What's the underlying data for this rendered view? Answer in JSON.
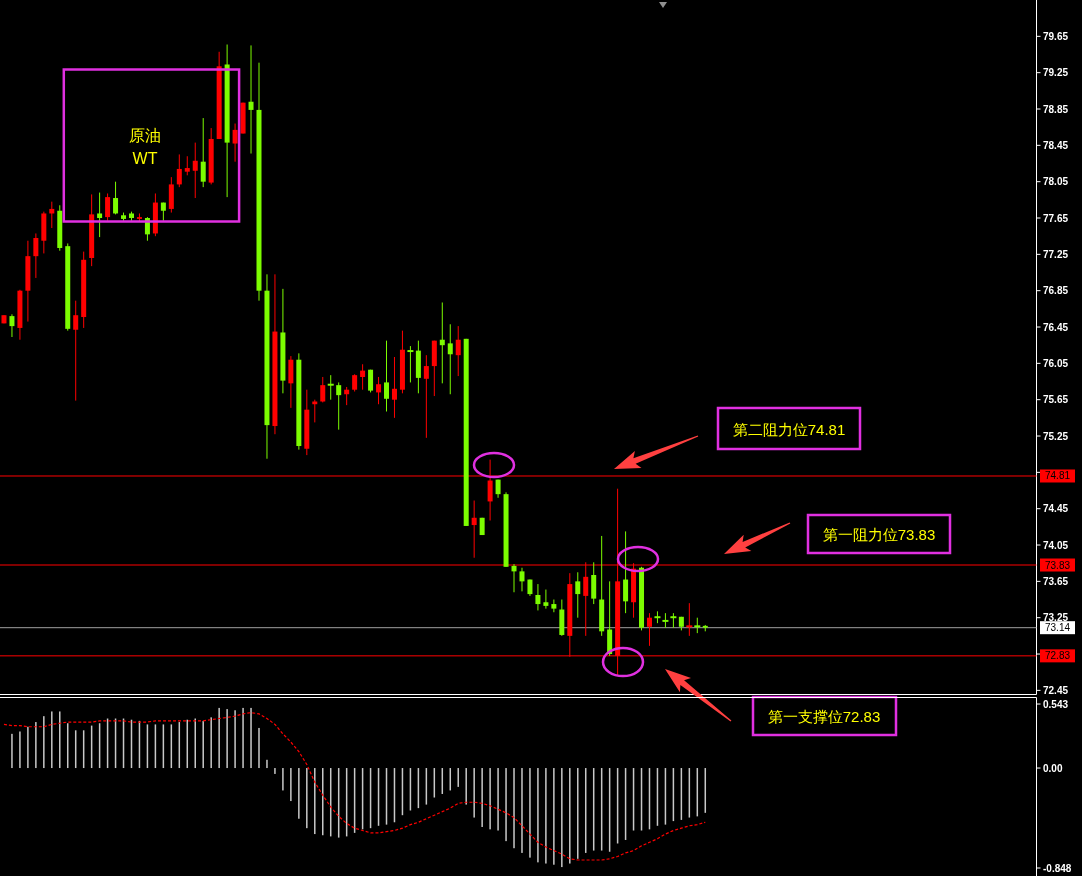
{
  "chart_data": [
    {
      "type": "candlestick",
      "categories": [
        null,
        null,
        null,
        null,
        null,
        null,
        null,
        null,
        null,
        null,
        null,
        null,
        null,
        null,
        null,
        null,
        null,
        null,
        null,
        null,
        null,
        null,
        null,
        null,
        null,
        null,
        null,
        null,
        null,
        null,
        null,
        null,
        null,
        null,
        null,
        null,
        null,
        null,
        null,
        null,
        null,
        null,
        null,
        null,
        null,
        null,
        null,
        null,
        null,
        null,
        null,
        null,
        null,
        null,
        null,
        null,
        null,
        null,
        null,
        null,
        null,
        null,
        null,
        null,
        null,
        null,
        null,
        null,
        null,
        null,
        null,
        null,
        null,
        null,
        null,
        null,
        null,
        null,
        null,
        null,
        null,
        null,
        null,
        null,
        null,
        null,
        null,
        null,
        null,
        null,
        null,
        null,
        null,
        null,
        null,
        null,
        null,
        null,
        null,
        null,
        null,
        null,
        null,
        null,
        null,
        null,
        null,
        null,
        null,
        null,
        null,
        null,
        null,
        null,
        null,
        null,
        null,
        null,
        null,
        null,
        null,
        null,
        null,
        null,
        null,
        null,
        null,
        null,
        null,
        null
      ],
      "ohlc": [
        [
          76.49,
          76.58,
          76.49,
          76.58
        ],
        [
          76.57,
          76.59,
          76.34,
          76.46
        ],
        [
          76.44,
          76.86,
          76.31,
          76.85
        ],
        [
          76.85,
          77.4,
          76.51,
          77.23
        ],
        [
          77.23,
          77.48,
          76.99,
          77.43
        ],
        [
          77.4,
          77.72,
          77.26,
          77.7
        ],
        [
          77.7,
          77.83,
          77.54,
          77.75
        ],
        [
          77.73,
          77.79,
          77.29,
          77.32
        ],
        [
          77.34,
          77.37,
          76.41,
          76.43
        ],
        [
          76.42,
          76.74,
          75.64,
          76.58
        ],
        [
          76.56,
          77.28,
          76.44,
          77.19
        ],
        [
          77.21,
          77.91,
          77.12,
          77.69
        ],
        [
          77.7,
          77.93,
          77.44,
          77.65
        ],
        [
          77.66,
          77.92,
          77.62,
          77.88
        ],
        [
          77.87,
          78.05,
          77.69,
          77.7
        ],
        [
          77.68,
          77.71,
          77.62,
          77.64
        ],
        [
          77.7,
          77.72,
          77.62,
          77.65
        ],
        [
          77.64,
          77.7,
          77.61,
          77.66
        ],
        [
          77.65,
          77.66,
          77.4,
          77.47
        ],
        [
          77.48,
          77.92,
          77.45,
          77.82
        ],
        [
          77.82,
          77.82,
          77.62,
          77.73
        ],
        [
          77.75,
          78.1,
          77.71,
          78.02
        ],
        [
          78.02,
          78.35,
          77.99,
          78.19
        ],
        [
          78.16,
          78.33,
          78.12,
          78.2
        ],
        [
          78.17,
          78.48,
          77.87,
          78.28
        ],
        [
          78.27,
          78.75,
          77.99,
          78.05
        ],
        [
          78.04,
          78.64,
          78.02,
          78.52
        ],
        [
          78.52,
          79.48,
          78.52,
          79.32
        ],
        [
          79.34,
          79.56,
          77.88,
          78.48
        ],
        [
          78.47,
          78.69,
          78.27,
          78.62
        ],
        [
          78.58,
          78.92,
          78.58,
          78.92
        ],
        [
          78.93,
          79.55,
          78.36,
          78.84
        ],
        [
          78.84,
          79.36,
          76.74,
          76.85
        ],
        [
          76.85,
          77.03,
          75.0,
          75.37
        ],
        [
          75.36,
          77.03,
          75.27,
          76.4
        ],
        [
          76.39,
          76.87,
          75.72,
          75.86
        ],
        [
          75.83,
          76.13,
          75.56,
          76.09
        ],
        [
          76.09,
          76.16,
          75.1,
          75.14
        ],
        [
          75.11,
          75.76,
          75.04,
          75.54
        ],
        [
          75.6,
          75.65,
          75.4,
          75.63
        ],
        [
          75.63,
          75.9,
          75.62,
          75.81
        ],
        [
          75.82,
          75.92,
          75.65,
          75.81
        ],
        [
          75.81,
          75.84,
          75.32,
          75.7
        ],
        [
          75.71,
          75.79,
          75.59,
          75.76
        ],
        [
          75.76,
          75.93,
          75.74,
          75.92
        ],
        [
          75.9,
          76.04,
          75.76,
          75.97
        ],
        [
          75.98,
          75.98,
          75.73,
          75.75
        ],
        [
          75.73,
          75.9,
          75.6,
          75.82
        ],
        [
          75.84,
          76.3,
          75.52,
          75.66
        ],
        [
          75.65,
          76.12,
          75.45,
          75.77
        ],
        [
          75.76,
          76.41,
          75.72,
          76.2
        ],
        [
          76.19,
          76.24,
          75.84,
          76.18
        ],
        [
          76.19,
          76.3,
          75.72,
          75.89
        ],
        [
          75.88,
          76.14,
          75.23,
          76.02
        ],
        [
          76.02,
          76.3,
          75.69,
          76.3
        ],
        [
          76.31,
          76.72,
          75.83,
          76.25
        ],
        [
          76.27,
          76.48,
          75.71,
          76.15
        ],
        [
          76.14,
          76.46,
          75.91,
          76.31
        ],
        [
          76.32,
          76.32,
          74.26,
          74.26
        ],
        [
          74.27,
          74.54,
          73.91,
          74.35
        ],
        [
          74.35,
          74.35,
          74.16,
          74.16
        ],
        [
          74.53,
          74.99,
          74.32,
          74.76
        ],
        [
          74.77,
          74.77,
          74.57,
          74.61
        ],
        [
          74.61,
          74.63,
          73.81,
          73.81
        ],
        [
          73.82,
          73.84,
          73.53,
          73.76
        ],
        [
          73.76,
          73.8,
          73.54,
          73.65
        ],
        [
          73.67,
          73.67,
          73.49,
          73.51
        ],
        [
          73.5,
          73.62,
          73.33,
          73.4
        ],
        [
          73.42,
          73.56,
          73.35,
          73.38
        ],
        [
          73.4,
          73.45,
          73.31,
          73.35
        ],
        [
          73.34,
          73.45,
          73.05,
          73.06
        ],
        [
          73.05,
          73.74,
          72.82,
          73.62
        ],
        [
          73.65,
          73.75,
          73.25,
          73.51
        ],
        [
          73.49,
          73.86,
          73.05,
          73.7
        ],
        [
          73.72,
          73.86,
          73.4,
          73.46
        ],
        [
          73.45,
          74.15,
          73.05,
          73.1
        ],
        [
          73.12,
          73.65,
          72.83,
          72.85
        ],
        [
          72.83,
          74.67,
          72.62,
          73.65
        ],
        [
          73.67,
          74.2,
          73.3,
          73.43
        ],
        [
          73.42,
          73.85,
          73.25,
          73.79
        ],
        [
          73.8,
          73.81,
          73.11,
          73.14
        ],
        [
          73.15,
          73.3,
          72.94,
          73.25
        ],
        [
          73.26,
          73.32,
          73.19,
          73.25
        ],
        [
          73.22,
          73.3,
          73.14,
          73.21
        ],
        [
          73.26,
          73.3,
          73.14,
          73.25
        ],
        [
          73.26,
          73.26,
          73.11,
          73.15
        ],
        [
          73.15,
          73.41,
          73.05,
          73.16
        ],
        [
          73.16,
          73.25,
          73.08,
          73.15
        ],
        [
          73.16,
          73.17,
          73.1,
          73.14
        ],
        null,
        null,
        null,
        null,
        null,
        null,
        null,
        null,
        null,
        null,
        null,
        null,
        null,
        null,
        null,
        null,
        null,
        null,
        null,
        null,
        null,
        null,
        null,
        null,
        null,
        null,
        null,
        null,
        null,
        null,
        null,
        null,
        null,
        null,
        null,
        null,
        null,
        null,
        null,
        null,
        null
      ],
      "colors": [
        "#ff0000",
        "#7cfc00",
        "#ff0000",
        "#ff0000",
        "#ff0000",
        "#ff0000",
        "#ff0000",
        "#7cfc00",
        "#7cfc00",
        "#ff0000",
        "#ff0000",
        "#ff0000",
        "#7cfc00",
        "#ff0000",
        "#7cfc00",
        "#7cfc00",
        "#7cfc00",
        "#ff0000",
        "#7cfc00",
        "#ff0000",
        "#7cfc00",
        "#ff0000",
        "#ff0000",
        "#ff0000",
        "#ff0000",
        "#7cfc00",
        "#ff0000",
        "#ff0000",
        "#7cfc00",
        "#ff0000",
        "#ff0000",
        "#7cfc00",
        "#7cfc00",
        "#7cfc00",
        "#ff0000",
        "#7cfc00",
        "#ff0000",
        "#7cfc00",
        "#ff0000",
        "#ff0000",
        "#ff0000",
        "#7cfc00",
        "#7cfc00",
        "#ff0000",
        "#ff0000",
        "#ff0000",
        "#7cfc00",
        "#ff0000",
        "#7cfc00",
        "#ff0000",
        "#ff0000",
        "#7cfc00",
        "#7cfc00",
        "#ff0000",
        "#ff0000",
        "#7cfc00",
        "#7cfc00",
        "#ff0000",
        "#7cfc00",
        "#ff0000",
        "#7cfc00",
        "#ff0000",
        "#7cfc00",
        "#7cfc00",
        "#7cfc00",
        "#7cfc00",
        "#7cfc00",
        "#7cfc00",
        "#7cfc00",
        "#7cfc00",
        "#7cfc00",
        "#ff0000",
        "#7cfc00",
        "#ff0000",
        "#7cfc00",
        "#7cfc00",
        "#7cfc00",
        "#ff0000",
        "#7cfc00",
        "#ff0000",
        "#7cfc00",
        "#ff0000",
        "#7cfc00",
        "#7cfc00",
        "#7cfc00",
        "#7cfc00",
        "#ff0000",
        "#7cfc00",
        "#7cfc00",
        null,
        null,
        null,
        null,
        null,
        null,
        null,
        null,
        null,
        null,
        null,
        null,
        null,
        null,
        null,
        null,
        null,
        null,
        null,
        null,
        null,
        null,
        null,
        null,
        null,
        null,
        null,
        null,
        null,
        null,
        null,
        null,
        null,
        null,
        null,
        null,
        null,
        null,
        null,
        null,
        null
      ],
      "ylim": [
        72.41,
        80.05
      ],
      "yticks": [
        72.45,
        {
          "value": 72.85,
          "label": null
        },
        73.25,
        73.65,
        74.05,
        74.45,
        {
          "value": 74.85,
          "label": null
        },
        75.25,
        75.65,
        76.05,
        76.45,
        76.85,
        77.25,
        77.65,
        78.05,
        78.45,
        78.85,
        79.25,
        79.65
      ],
      "tick_labels": "y",
      "ref_lines": [
        {
          "axis": "y",
          "value": 74.81,
          "label": "74.81",
          "color": "#ff0000"
        },
        {
          "axis": "y",
          "value": 73.83,
          "label": "73.83",
          "color": "#ff0000"
        },
        {
          "axis": "y",
          "value": 73.14,
          "label": "73.14",
          "color": "#a0a0a0"
        },
        {
          "axis": "y",
          "value": 72.83,
          "label": "72.83",
          "color": "#ff0000"
        }
      ],
      "annotations": [
        "原油\nWT",
        "第二阻力位74.81",
        "第一阻力位73.83",
        "第一支撑位72.83"
      ]
    },
    {
      "type": "bar",
      "categories": [
        null,
        null,
        null,
        null,
        null,
        null,
        null,
        null,
        null,
        null,
        null,
        null,
        null,
        null,
        null,
        null,
        null,
        null,
        null,
        null,
        null,
        null,
        null,
        null,
        null,
        null,
        null,
        null,
        null,
        null,
        null,
        null,
        null,
        null,
        null,
        null,
        null,
        null,
        null,
        null,
        null,
        null,
        null,
        null,
        null,
        null,
        null,
        null,
        null,
        null,
        null,
        null,
        null,
        null,
        null,
        null,
        null,
        null,
        null,
        null,
        null,
        null,
        null,
        null,
        null,
        null,
        null,
        null,
        null,
        null,
        null,
        null,
        null,
        null,
        null,
        null,
        null,
        null,
        null,
        null,
        null,
        null,
        null,
        null,
        null,
        null,
        null,
        null,
        null,
        null,
        null,
        null,
        null,
        null,
        null,
        null,
        null,
        null,
        null,
        null,
        null,
        null,
        null,
        null,
        null,
        null,
        null,
        null,
        null,
        null,
        null,
        null,
        null,
        null,
        null,
        null,
        null,
        null,
        null,
        null,
        null,
        null,
        null,
        null,
        null,
        null,
        null,
        null,
        null,
        null
      ],
      "series": [
        {
          "type": "bar",
          "color": "#c8c8c8",
          "values": [
            null,
            0.29,
            0.31,
            0.35,
            0.39,
            0.44,
            0.48,
            0.48,
            0.38,
            0.32,
            0.32,
            0.36,
            0.38,
            0.42,
            0.42,
            0.42,
            0.41,
            0.4,
            0.37,
            0.37,
            0.37,
            0.37,
            0.39,
            0.41,
            0.42,
            0.4,
            0.43,
            0.51,
            0.5,
            0.49,
            0.51,
            0.51,
            0.34,
            0.07,
            -0.05,
            -0.19,
            -0.28,
            -0.43,
            -0.51,
            -0.56,
            -0.57,
            -0.58,
            -0.59,
            -0.58,
            -0.55,
            -0.52,
            -0.51,
            -0.49,
            -0.48,
            -0.46,
            -0.4,
            -0.36,
            -0.34,
            -0.31,
            -0.25,
            -0.22,
            -0.19,
            -0.16,
            -0.31,
            -0.42,
            -0.5,
            -0.52,
            -0.53,
            -0.62,
            -0.68,
            -0.72,
            -0.76,
            -0.8,
            -0.81,
            -0.82,
            -0.84,
            -0.81,
            -0.77,
            -0.72,
            -0.7,
            -0.7,
            -0.71,
            -0.64,
            -0.61,
            -0.53,
            -0.53,
            -0.52,
            -0.49,
            -0.48,
            -0.45,
            -0.44,
            -0.42,
            -0.41,
            -0.38,
            null,
            null,
            null,
            null,
            null,
            null,
            null,
            null,
            null,
            null,
            null,
            null,
            null,
            null,
            null,
            null,
            null,
            null,
            null,
            null,
            null,
            null,
            null,
            null,
            null,
            null,
            null,
            null,
            null,
            null,
            null,
            null,
            null,
            null,
            null,
            null,
            null,
            null,
            null,
            null,
            null
          ]
        },
        {
          "type": "line",
          "color": "#ff0000",
          "line_style": "dashed",
          "values": [
            0.37,
            0.36,
            0.36,
            0.35,
            0.35,
            0.35,
            0.37,
            0.38,
            0.39,
            0.39,
            0.39,
            0.39,
            0.4,
            0.4,
            0.4,
            0.4,
            0.39,
            0.39,
            0.39,
            0.4,
            0.4,
            0.4,
            0.4,
            0.4,
            0.4,
            0.4,
            0.41,
            0.42,
            0.43,
            0.44,
            0.46,
            0.47,
            0.46,
            0.42,
            0.37,
            0.29,
            0.22,
            0.14,
            0.03,
            -0.12,
            -0.23,
            -0.33,
            -0.41,
            -0.47,
            -0.51,
            -0.53,
            -0.55,
            -0.55,
            -0.54,
            -0.53,
            -0.51,
            -0.48,
            -0.46,
            -0.43,
            -0.4,
            -0.37,
            -0.34,
            -0.3,
            -0.29,
            -0.29,
            -0.3,
            -0.32,
            -0.35,
            -0.38,
            -0.42,
            -0.49,
            -0.56,
            -0.63,
            -0.67,
            -0.7,
            -0.73,
            -0.77,
            -0.78,
            -0.78,
            -0.78,
            -0.78,
            -0.77,
            -0.75,
            -0.72,
            -0.7,
            -0.66,
            -0.63,
            -0.6,
            -0.56,
            -0.53,
            -0.51,
            -0.49,
            -0.48,
            -0.46,
            null,
            null,
            null,
            null,
            null,
            null,
            null,
            null,
            null,
            null,
            null,
            null,
            null,
            null,
            null,
            null,
            null,
            null,
            null,
            null,
            null,
            null,
            null,
            null,
            null,
            null,
            null,
            null,
            null,
            null,
            null,
            null,
            null,
            null,
            null,
            null,
            null,
            null,
            null,
            null,
            null
          ]
        }
      ],
      "ylim": [
        -0.92,
        0.6
      ],
      "yticks": [
        0.543,
        {
          "value": 0,
          "label": "0.00"
        },
        -0.848
      ],
      "tick_labels": "y"
    }
  ]
}
